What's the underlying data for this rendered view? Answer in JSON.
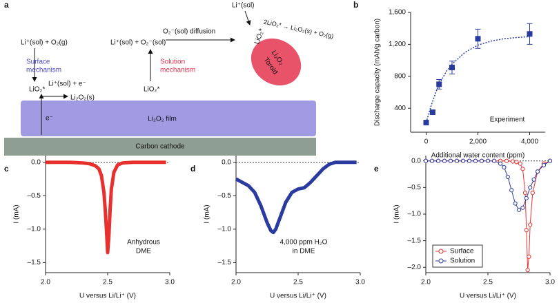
{
  "panel_labels": [
    "a",
    "b",
    "c",
    "d",
    "e"
  ],
  "diagram": {
    "surface_reactants": "Li⁺(sol) + O₂(g)",
    "surface_mechanism": [
      "Surface",
      "mechanism"
    ],
    "surface_step": "Li⁺(sol) + e⁻",
    "surface_intermediate": "LiO₂*",
    "surface_product": "Li₂O₂(s)",
    "solution_reactants": "Li⁺(sol) + O₂⁻(sol)",
    "solution_mechanism": [
      "Solution",
      "mechanism"
    ],
    "solution_intermediate": "LiO₂*",
    "diffusion": "O₂⁻(sol) diffusion",
    "top_li": "Li⁺(sol)",
    "toroid_intermediate": "LiO₂*",
    "disproportionation": "2LiO₂* → Li₂O₂(s) + O₂(g)",
    "toroid": [
      "Li₂O₂",
      "Toroid"
    ],
    "film": "Li₂O₂ film",
    "electron": "e⁻",
    "cathode": "Carbon cathode"
  },
  "chart_data": [
    {
      "type": "scatter",
      "xlabel": "Additional water content (ppm)",
      "ylabel": "Discharge capacity (mAh/g carbon)",
      "annotation": "Experiment",
      "x": [
        0,
        250,
        500,
        1000,
        2000,
        4000
      ],
      "values": [
        220,
        350,
        700,
        910,
        1270,
        1330
      ],
      "errors": [
        0,
        20,
        60,
        80,
        120,
        130
      ],
      "color": "#2b3a9e",
      "fit_line": {
        "x": [
          0,
          200,
          400,
          600,
          800,
          1000,
          1500,
          2000,
          2500,
          3000,
          3500,
          4000
        ],
        "values": [
          220,
          440,
          620,
          760,
          870,
          950,
          1100,
          1190,
          1240,
          1270,
          1285,
          1295
        ]
      },
      "xlim": [
        -600,
        4600
      ],
      "ylim": [
        100,
        1600
      ],
      "xticks": [
        0,
        {
          "value": 2000,
          "label": "2,000"
        },
        {
          "value": 4000,
          "label": "4,000"
        }
      ],
      "yticks": [
        400,
        800,
        {
          "value": 1200,
          "label": "1,200"
        },
        {
          "value": 1600,
          "label": "1,600"
        }
      ]
    },
    {
      "type": "line",
      "xlabel": "U versus Li/Li⁺ (V)",
      "ylabel": "I (mA)",
      "annotation": [
        "Anhydrous",
        "DME"
      ],
      "series": [
        {
          "color": "#e8312f",
          "x": [
            2.0,
            2.1,
            2.2,
            2.3,
            2.35,
            2.4,
            2.43,
            2.45,
            2.47,
            2.48,
            2.49,
            2.5,
            2.51,
            2.52,
            2.53,
            2.55,
            2.58,
            2.62,
            2.7,
            2.8,
            2.9,
            2.97
          ],
          "values": [
            0,
            0,
            0,
            -0.01,
            -0.02,
            -0.05,
            -0.1,
            -0.2,
            -0.45,
            -0.7,
            -1.0,
            -1.35,
            -1.1,
            -0.7,
            -0.4,
            -0.15,
            -0.04,
            -0.01,
            0,
            0,
            0,
            0
          ]
        }
      ],
      "xlim": [
        2,
        3
      ],
      "ylim": [
        -1.65,
        0.1
      ],
      "xticks": [
        {
          "value": 2,
          "label": "2.0"
        },
        2.5,
        {
          "value": 3,
          "label": "3.0"
        }
      ],
      "yticks": [
        {
          "value": 0,
          "label": "0.0"
        },
        {
          "value": -0.5,
          "label": "–0.5"
        },
        {
          "value": -1,
          "label": "–1.0"
        },
        {
          "value": -1.5,
          "label": "–1.5"
        }
      ]
    },
    {
      "type": "line",
      "xlabel": "U versus Li/Li⁺ (V)",
      "ylabel": "I (mA)",
      "annotation": [
        "4,000 ppm H₂O",
        "in DME"
      ],
      "series": [
        {
          "color": "#2b3a9e",
          "x": [
            2.0,
            2.05,
            2.1,
            2.15,
            2.2,
            2.25,
            2.28,
            2.3,
            2.32,
            2.35,
            2.4,
            2.45,
            2.5,
            2.55,
            2.6,
            2.65,
            2.7,
            2.75,
            2.8,
            2.85,
            2.9,
            2.97
          ],
          "values": [
            -0.25,
            -0.3,
            -0.35,
            -0.45,
            -0.65,
            -0.9,
            -1.02,
            -1.05,
            -1.0,
            -0.85,
            -0.6,
            -0.45,
            -0.4,
            -0.38,
            -0.3,
            -0.2,
            -0.1,
            -0.03,
            0,
            0,
            0,
            0
          ]
        }
      ],
      "xlim": [
        2,
        3
      ],
      "ylim": [
        -1.65,
        0.1
      ],
      "xticks": [
        {
          "value": 2,
          "label": "2.0"
        },
        2.5,
        {
          "value": 3,
          "label": "3.0"
        }
      ],
      "yticks": [
        {
          "value": 0,
          "label": "0.0"
        },
        {
          "value": -0.5,
          "label": "–0.5"
        },
        {
          "value": -1,
          "label": "–1.0"
        },
        {
          "value": -1.5,
          "label": "–1.5"
        }
      ]
    },
    {
      "type": "line",
      "xlabel": "U versus Li/Li⁺ (V)",
      "ylabel": "I (mA)",
      "legend": "lower left",
      "marker": "circle",
      "series": [
        {
          "name": "Surface",
          "color": "#e8312f",
          "x": [
            2.0,
            2.05,
            2.1,
            2.15,
            2.2,
            2.25,
            2.3,
            2.35,
            2.4,
            2.45,
            2.5,
            2.55,
            2.6,
            2.65,
            2.7,
            2.73,
            2.76,
            2.78,
            2.8,
            2.81,
            2.82,
            2.83,
            2.84,
            2.86,
            2.9,
            2.95,
            3.0
          ],
          "values": [
            0,
            0,
            0,
            0,
            0,
            0,
            0,
            0,
            0,
            0,
            0,
            0,
            0,
            0,
            -0.01,
            -0.02,
            -0.05,
            -0.15,
            -0.6,
            -1.3,
            -2.05,
            -1.8,
            -1.2,
            -0.6,
            -0.2,
            -0.05,
            0
          ]
        },
        {
          "name": "Solution",
          "color": "#2b3a9e",
          "x": [
            2.0,
            2.05,
            2.1,
            2.15,
            2.2,
            2.25,
            2.3,
            2.35,
            2.4,
            2.45,
            2.5,
            2.55,
            2.6,
            2.63,
            2.66,
            2.69,
            2.72,
            2.75,
            2.78,
            2.81,
            2.84,
            2.87,
            2.9,
            2.95,
            3.0
          ],
          "values": [
            0,
            0,
            0,
            0,
            0,
            0,
            0,
            0,
            0,
            0,
            0,
            0,
            -0.05,
            -0.12,
            -0.3,
            -0.55,
            -0.8,
            -0.92,
            -0.88,
            -0.7,
            -0.5,
            -0.35,
            -0.2,
            -0.08,
            0
          ]
        }
      ],
      "xlim": [
        2,
        3
      ],
      "ylim": [
        -2.1,
        0.1
      ],
      "xticks": [
        {
          "value": 2,
          "label": "2.0"
        },
        2.5,
        {
          "value": 3,
          "label": "3.0"
        }
      ],
      "yticks": [
        {
          "value": 0,
          "label": "0.0"
        },
        {
          "value": -0.5,
          "label": "–0.5"
        },
        {
          "value": -1,
          "label": "–1.0"
        },
        {
          "value": -1.5,
          "label": "–1.5"
        },
        {
          "value": -2,
          "label": "–2.0"
        }
      ]
    }
  ]
}
